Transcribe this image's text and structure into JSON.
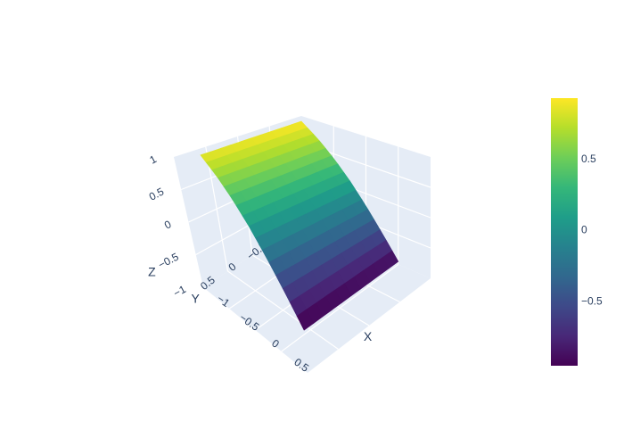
{
  "chart_data": {
    "type": "surface",
    "title": "",
    "colorscale": "Viridis",
    "colorscale_stops": [
      "#440154",
      "#482878",
      "#3e4989",
      "#31688e",
      "#26828e",
      "#1f9e89",
      "#35b779",
      "#6ece58",
      "#b5de2b",
      "#fde725"
    ],
    "axes": {
      "x": {
        "title": "X",
        "range": [
          -1,
          1
        ],
        "ticks": [
          -1,
          -0.5,
          0,
          0.5
        ],
        "tick_labels": [
          "−1",
          "−0.5",
          "0",
          "0.5"
        ]
      },
      "y": {
        "title": "Y",
        "range": [
          -1,
          1
        ],
        "ticks": [
          -1,
          -0.5,
          0,
          0.5
        ],
        "tick_labels": [
          "−1",
          "−0.5",
          "0",
          "0.5"
        ]
      },
      "z": {
        "title": "Z",
        "range": [
          -1,
          1
        ],
        "ticks": [
          -1,
          -0.5,
          0,
          0.5,
          1
        ],
        "tick_labels": [
          "−1",
          "−0.5",
          "0",
          "0.5",
          "1"
        ]
      }
    },
    "colorbar": {
      "range": [
        -0.95,
        0.93
      ],
      "ticks": [
        0.5,
        0,
        -0.5
      ],
      "tick_labels": [
        "0.5",
        "0",
        "−0.5"
      ]
    },
    "surface_profile": {
      "x": [
        -1,
        -0.75,
        -0.5,
        -0.25,
        0,
        0.25,
        0.5
      ],
      "z": [
        0.9,
        0.68,
        0.42,
        0.12,
        -0.22,
        -0.58,
        -0.95
      ]
    },
    "surface_y_range": [
      -1,
      0.6
    ]
  }
}
